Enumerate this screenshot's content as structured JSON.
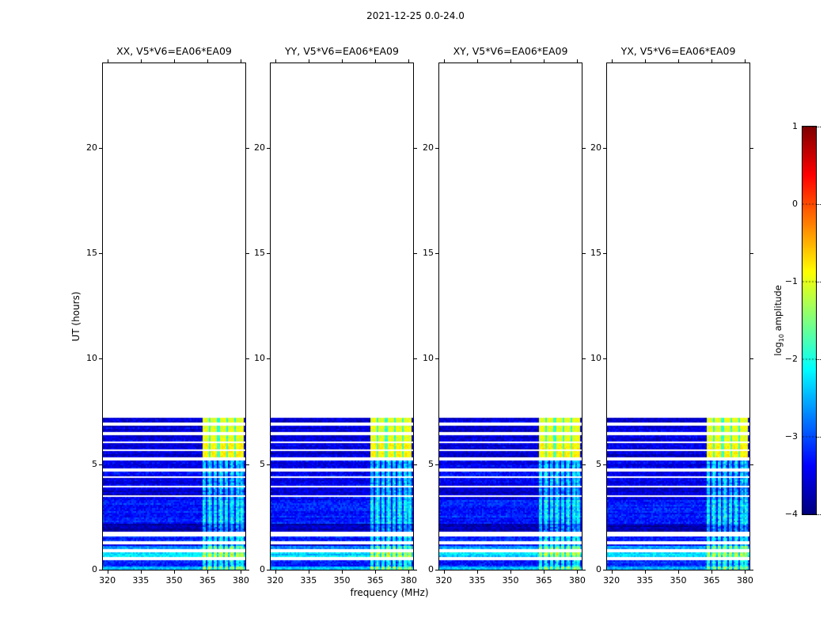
{
  "chart_data": {
    "type": "heatmap",
    "suptitle": "2021-12-25 0.0-24.0",
    "panels": [
      {
        "id": "XX",
        "title": "XX, V5*V6=EA06*EA09"
      },
      {
        "id": "YY",
        "title": "YY, V5*V6=EA06*EA09"
      },
      {
        "id": "XY",
        "title": "XY, V5*V6=EA06*EA09"
      },
      {
        "id": "YX",
        "title": "YX, V5*V6=EA06*EA09"
      }
    ],
    "x_axis": {
      "label": "frequency (MHz)",
      "range": [
        318,
        382
      ],
      "ticks": [
        320,
        335,
        350,
        365,
        380
      ]
    },
    "y_axis": {
      "label": "UT (hours)",
      "range": [
        0,
        24
      ],
      "ticks": [
        0,
        5,
        10,
        15,
        20
      ]
    },
    "colorbar": {
      "label_prefix": "log",
      "label_sub": "10",
      "label_suffix": " amplitude",
      "vmin": -4,
      "vmax": 1,
      "ticks": [
        1,
        0,
        -1,
        -2,
        -3,
        -4
      ],
      "tick_labels": [
        "1",
        "0",
        "−1",
        "−2",
        "−3",
        "−4"
      ],
      "colormap": "jet"
    },
    "spectrogram": {
      "observed_time_range": [
        0,
        7.2
      ],
      "background_level": -3.45,
      "noise_amp": 0.5,
      "gaps": [
        [
          6.82,
          6.96
        ],
        [
          6.4,
          6.52
        ],
        [
          5.97,
          6.07
        ],
        [
          5.59,
          5.71
        ],
        [
          5.16,
          5.32
        ],
        [
          4.64,
          4.78
        ],
        [
          4.34,
          4.44
        ],
        [
          3.88,
          4.0
        ],
        [
          3.42,
          3.55
        ],
        [
          1.6,
          1.78
        ],
        [
          1.22,
          1.34
        ],
        [
          0.84,
          0.96
        ],
        [
          0.48,
          0.58
        ]
      ],
      "time_bands": [
        {
          "t": [
            0,
            0.14
          ],
          "boost": 1.0
        },
        {
          "t": [
            0.14,
            0.48
          ],
          "boost": 0.25
        },
        {
          "t": [
            0.58,
            0.84
          ],
          "boost": 1.15
        },
        {
          "t": [
            0.96,
            1.16
          ],
          "boost": 0.8
        },
        {
          "t": [
            1.34,
            1.6
          ],
          "boost": 0.2
        },
        {
          "t": [
            1.78,
            2.2
          ],
          "boost": -0.3
        },
        {
          "t": [
            2.2,
            3.3
          ],
          "boost": 0.2
        },
        {
          "t": [
            3.55,
            3.88
          ],
          "boost": -0.15
        },
        {
          "t": [
            5.32,
            7.2
          ],
          "boost": -0.12
        }
      ],
      "rfi_stripes": {
        "freq_range": [
          362,
          381
        ],
        "time_max": 5.32,
        "centers": [
          363.5,
          366,
          368.5,
          371,
          373.5,
          376,
          378.5,
          380.5
        ],
        "half_width": 1.0,
        "boost": 1.3
      },
      "bright_block": {
        "freq_range": [
          362.5,
          381
        ],
        "time_range": [
          5.32,
          7.2
        ],
        "level": -1.0,
        "warm_rows_below": 6.07,
        "warm_boost": 0.15,
        "grid_freqs": [
          366.2,
          370,
          373.8,
          377.6
        ],
        "grid_halfwidth": 0.45,
        "grid_darken": 0.95
      },
      "panel_seeds": [
        11,
        22,
        33,
        44
      ]
    }
  }
}
